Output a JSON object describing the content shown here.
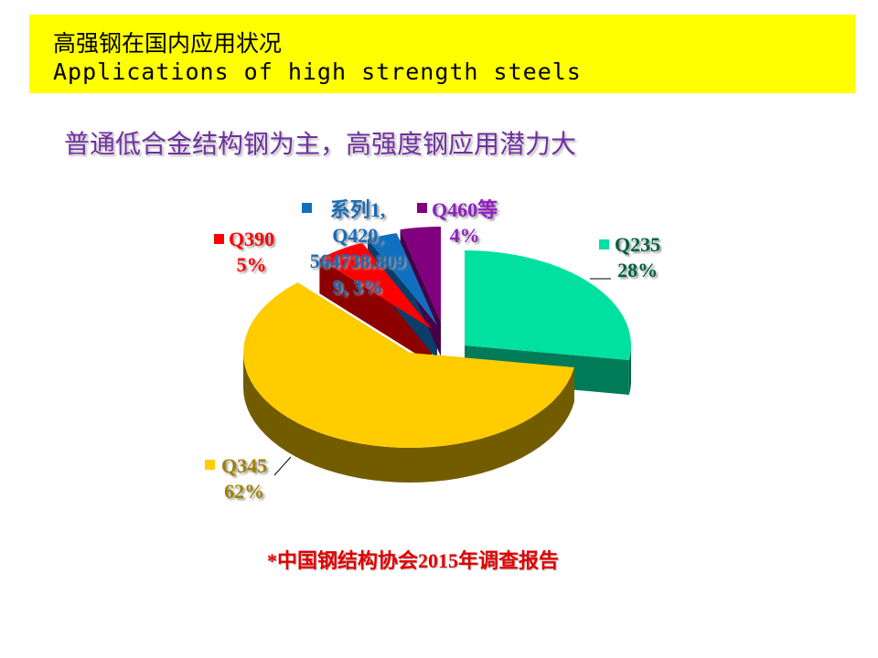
{
  "header": {
    "title_cn": "高强钢在国内应用状况",
    "title_en": "Applications of high strength steels"
  },
  "subtitle": "普通低合金结构钢为主，高强度钢应用潜力大",
  "footnote": "*中国钢结构协会2015年调查报告",
  "chart_data": {
    "type": "pie",
    "style": "3d-exploded",
    "slices": [
      {
        "name": "Q235",
        "value": 28,
        "label": "28%",
        "color": "#00e0a0"
      },
      {
        "name": "Q345",
        "value": 62,
        "label": "62%",
        "color": "#ffcc00"
      },
      {
        "name": "Q390",
        "value": 5,
        "label": "5%",
        "color": "#ff0000"
      },
      {
        "name": "Q420",
        "value": 3,
        "label": "3%",
        "color": "#1070c0",
        "series_label": "系列1,",
        "raw_value": "564738.809"
      },
      {
        "name": "Q460等",
        "value": 4,
        "label": "4%",
        "color": "#800080"
      }
    ]
  }
}
